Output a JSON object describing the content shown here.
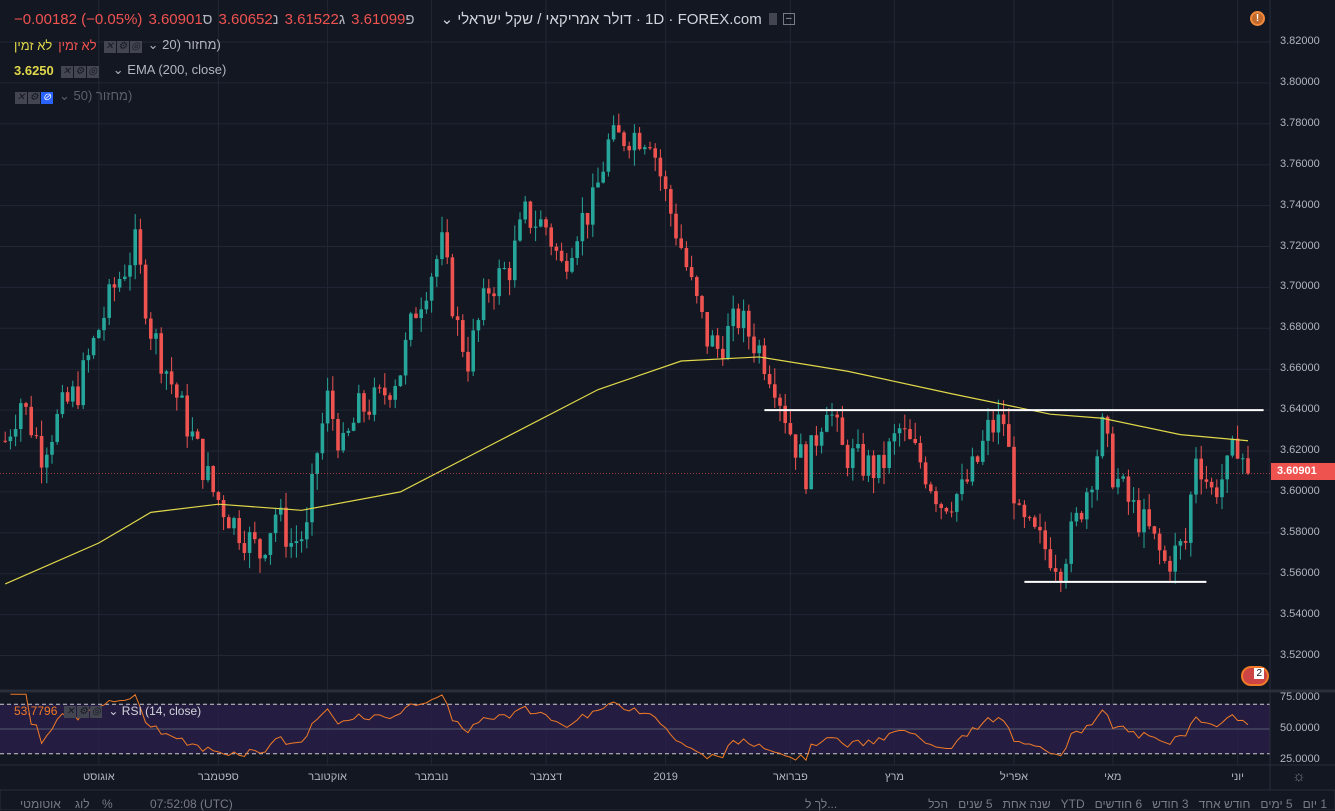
{
  "header": {
    "change": "−0.00182 (−0.05%)",
    "close": "3.60901",
    "close_label": "ס",
    "low": "3.60652",
    "low_label": "נ",
    "high": "3.61522",
    "high_label": "ג",
    "open": "3.61099",
    "open_label": "פ",
    "symbol": "דולר אמריקאי / שקל ישראלי",
    "interval": "1D",
    "source": "FOREX.com"
  },
  "legend": {
    "ind1": "מחזור (20",
    "ind1_vals": "לא זמין",
    "ind1_vals2": "לא זמין",
    "ema": "EMA (200, close)",
    "ema_value": "3.6250",
    "ind3": "מחזור (50",
    "rsi": "RSI (14, close)",
    "rsi_value": "53.7796"
  },
  "price_axis": [
    "3.82000",
    "3.80000",
    "3.78000",
    "3.76000",
    "3.74000",
    "3.72000",
    "3.70000",
    "3.68000",
    "3.66000",
    "3.64000",
    "3.62000",
    "3.60000",
    "3.58000",
    "3.56000",
    "3.54000",
    "3.52000"
  ],
  "current_price": "3.60901",
  "rsi_axis": [
    "75.0000",
    "50.0000",
    "25.0000"
  ],
  "time_axis": [
    {
      "label": "אוגוסט",
      "bar": 19
    },
    {
      "label": "ספטמבר",
      "bar": 42
    },
    {
      "label": "אוקטובר",
      "bar": 63
    },
    {
      "label": "נובמבר",
      "bar": 83
    },
    {
      "label": "דצמבר",
      "bar": 105
    },
    {
      "label": "2019",
      "bar": 128
    },
    {
      "label": "פברואר",
      "bar": 152
    },
    {
      "label": "מרץ",
      "bar": 172
    },
    {
      "label": "אפריל",
      "bar": 195
    },
    {
      "label": "מאי",
      "bar": 214
    },
    {
      "label": "יוני",
      "bar": 238
    }
  ],
  "bottom": {
    "ranges": [
      "1 יום",
      "5 ימים",
      "חודש אחד",
      "3 חודש",
      "6 חודשים",
      "YTD",
      "שנה אחת",
      "5 שנים",
      "הכל"
    ],
    "goto": "לך ל...",
    "time": "07:52:08 (UTC)",
    "pct": "%",
    "log": "לוג",
    "auto": "אוטומטי"
  },
  "events_badge": "2",
  "colors": {
    "up": "#26a69a",
    "down": "#ef5350",
    "ema": "#e0d84a",
    "rsi": "#f07a27"
  },
  "chart_data": {
    "type": "candlestick",
    "symbol": "USD/ILS",
    "interval": "1D",
    "ylim": [
      3.5,
      3.83
    ],
    "close_path": [
      [
        1,
        3.625
      ],
      [
        4,
        3.645
      ],
      [
        8,
        3.62
      ],
      [
        12,
        3.64
      ],
      [
        15,
        3.65
      ],
      [
        19,
        3.68
      ],
      [
        22,
        3.7
      ],
      [
        26,
        3.72
      ],
      [
        29,
        3.68
      ],
      [
        32,
        3.66
      ],
      [
        35,
        3.64
      ],
      [
        38,
        3.62
      ],
      [
        41,
        3.6
      ],
      [
        45,
        3.585
      ],
      [
        50,
        3.57
      ],
      [
        53,
        3.59
      ],
      [
        56,
        3.575
      ],
      [
        59,
        3.58
      ],
      [
        61,
        3.62
      ],
      [
        63,
        3.645
      ],
      [
        66,
        3.62
      ],
      [
        69,
        3.64
      ],
      [
        73,
        3.645
      ],
      [
        77,
        3.66
      ],
      [
        80,
        3.69
      ],
      [
        85,
        3.72
      ],
      [
        88,
        3.68
      ],
      [
        90,
        3.665
      ],
      [
        94,
        3.7
      ],
      [
        98,
        3.71
      ],
      [
        101,
        3.735
      ],
      [
        105,
        3.73
      ],
      [
        108,
        3.71
      ],
      [
        111,
        3.73
      ],
      [
        114,
        3.74
      ],
      [
        117,
        3.77
      ],
      [
        121,
        3.775
      ],
      [
        125,
        3.775
      ],
      [
        128,
        3.745
      ],
      [
        131,
        3.72
      ],
      [
        133,
        3.7
      ],
      [
        136,
        3.675
      ],
      [
        138,
        3.67
      ],
      [
        142,
        3.685
      ],
      [
        146,
        3.67
      ],
      [
        149,
        3.655
      ],
      [
        152,
        3.63
      ],
      [
        155,
        3.61
      ],
      [
        159,
        3.645
      ],
      [
        162,
        3.62
      ],
      [
        165,
        3.615
      ],
      [
        169,
        3.61
      ],
      [
        173,
        3.63
      ],
      [
        177,
        3.615
      ],
      [
        181,
        3.595
      ],
      [
        185,
        3.6
      ],
      [
        188,
        3.615
      ],
      [
        190,
        3.63
      ],
      [
        193,
        3.635
      ],
      [
        196,
        3.585
      ],
      [
        200,
        3.575
      ],
      [
        204,
        3.565
      ],
      [
        207,
        3.585
      ],
      [
        210,
        3.61
      ],
      [
        212,
        3.63
      ],
      [
        214,
        3.61
      ],
      [
        217,
        3.595
      ],
      [
        221,
        3.58
      ],
      [
        224,
        3.565
      ],
      [
        228,
        3.575
      ],
      [
        230,
        3.62
      ],
      [
        233,
        3.6
      ],
      [
        236,
        3.61
      ],
      [
        238,
        3.625
      ],
      [
        240,
        3.609
      ]
    ],
    "ema200": [
      [
        1,
        3.555
      ],
      [
        19,
        3.575
      ],
      [
        29,
        3.59
      ],
      [
        42,
        3.594
      ],
      [
        58,
        3.591
      ],
      [
        77,
        3.6
      ],
      [
        96,
        3.625
      ],
      [
        115,
        3.65
      ],
      [
        131,
        3.664
      ],
      [
        146,
        3.666
      ],
      [
        163,
        3.659
      ],
      [
        183,
        3.648
      ],
      [
        202,
        3.638
      ],
      [
        212,
        3.636
      ],
      [
        227,
        3.628
      ],
      [
        240,
        3.625
      ]
    ],
    "hlines": [
      {
        "price": 3.64,
        "from_bar": 147,
        "to_bar": 243
      },
      {
        "price": 3.556,
        "from_bar": 197,
        "to_bar": 232
      }
    ],
    "rsi": {
      "period": 14,
      "levels": [
        70,
        30
      ],
      "ylim": [
        20,
        80
      ]
    }
  }
}
